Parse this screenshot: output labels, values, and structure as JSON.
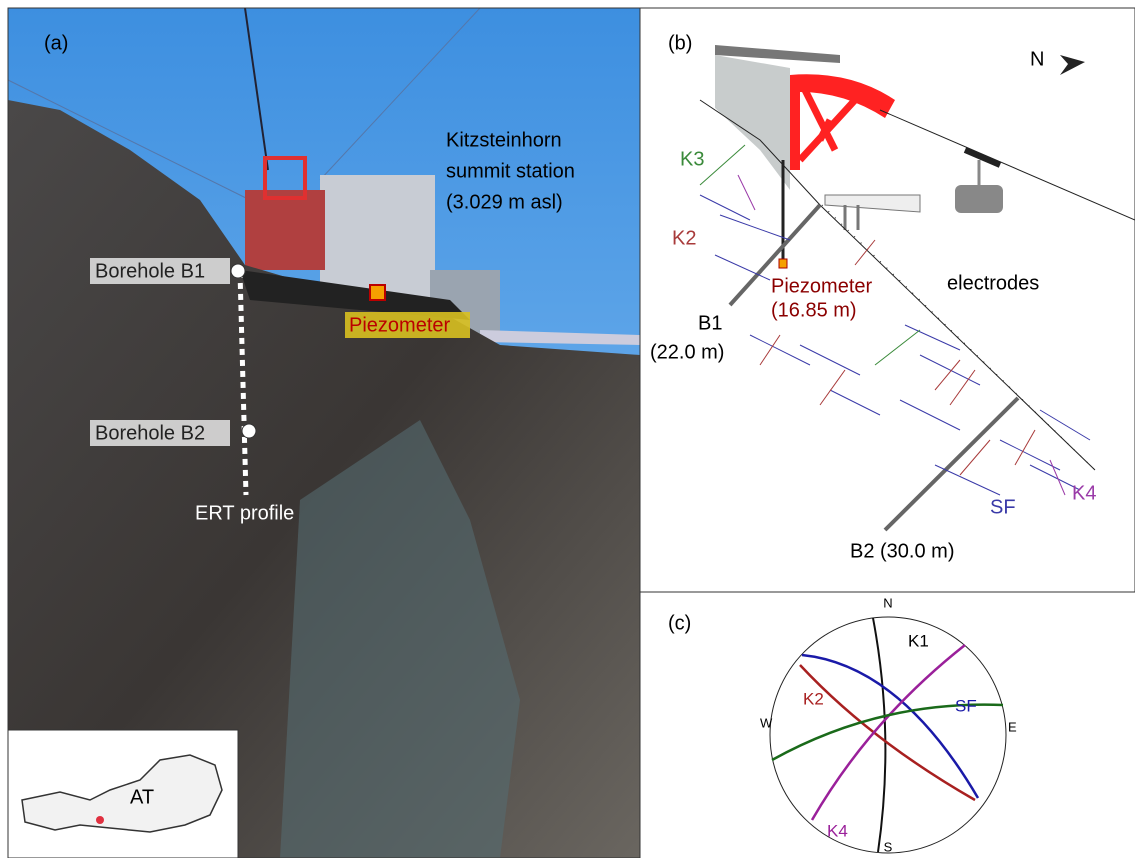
{
  "panel_a": {
    "label": "(a)",
    "station": [
      "Kitzsteinhorn",
      "summit station",
      "(3.029 m asl)"
    ],
    "borehole_b1": "Borehole B1",
    "borehole_b2": "Borehole B2",
    "piezometer": "Piezometer",
    "ert": "ERT profile",
    "country": "AT"
  },
  "panel_b": {
    "label": "(b)",
    "north": "N",
    "k3": "K3",
    "k2": "K2",
    "piezometer": [
      "Piezometer",
      "(16.85 m)"
    ],
    "electrodes": "electrodes",
    "b1": [
      "B1",
      "(22.0 m)"
    ],
    "sf": "SF",
    "k4": "K4",
    "b2": "B2 (30.0 m)"
  },
  "panel_c": {
    "label": "(c)",
    "n": "N",
    "s": "S",
    "w": "W",
    "e": "E",
    "k1": "K1",
    "k2": "K2",
    "sf": "SF",
    "k4": "K4"
  }
}
